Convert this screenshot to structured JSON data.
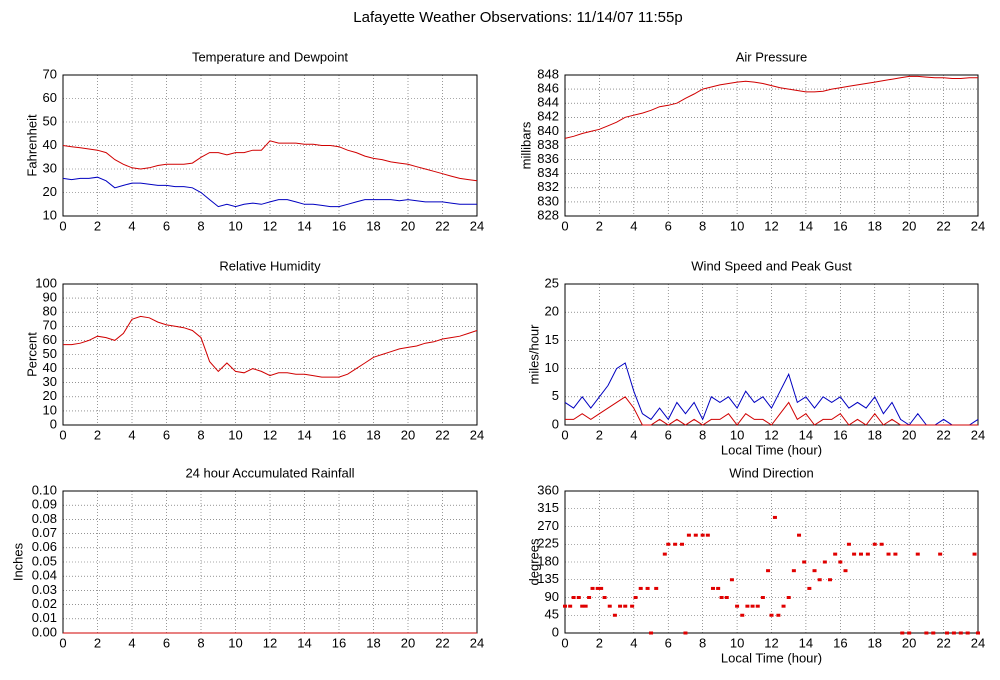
{
  "title": "Lafayette Weather Observations: 11/14/07 11:55p",
  "chart_data": [
    {
      "type": "line",
      "title": "Temperature and Dewpoint",
      "ylabel": "Fahrenheit",
      "grid": true,
      "x": [
        0,
        0.5,
        1,
        1.5,
        2,
        2.5,
        3,
        3.5,
        4,
        4.5,
        5,
        5.5,
        6,
        6.5,
        7,
        7.5,
        8,
        8.5,
        9,
        9.5,
        10,
        10.5,
        11,
        11.5,
        12,
        12.5,
        13,
        13.5,
        14,
        14.5,
        15,
        15.5,
        16,
        16.5,
        17,
        17.5,
        18,
        18.5,
        19,
        19.5,
        20,
        20.5,
        21,
        21.5,
        22,
        22.5,
        23,
        23.5,
        24
      ],
      "xlim": [
        0,
        24
      ],
      "xticks": [
        0,
        2,
        4,
        6,
        8,
        10,
        12,
        14,
        16,
        18,
        20,
        22,
        24
      ],
      "ylim": [
        10,
        70
      ],
      "yticks": [
        10,
        20,
        30,
        40,
        50,
        60,
        70
      ],
      "series": [
        {
          "color": "#d00000",
          "values": [
            40,
            39.5,
            39,
            38.5,
            38,
            37,
            34,
            32,
            30.5,
            30,
            30.5,
            31.5,
            32,
            32,
            32,
            32.5,
            35,
            37,
            37,
            36,
            37,
            37,
            38,
            38,
            42,
            41,
            41,
            41,
            40.5,
            40.5,
            40,
            40,
            39.5,
            38,
            37,
            35.5,
            34.5,
            34,
            33,
            32.5,
            32,
            31,
            30,
            29,
            28,
            27,
            26,
            25.5,
            25
          ]
        },
        {
          "color": "#0000c0",
          "values": [
            26,
            25.5,
            26,
            26,
            26.5,
            25,
            22,
            23,
            24,
            24,
            23.5,
            23,
            23,
            22.5,
            22.5,
            22,
            20,
            17,
            14,
            15,
            14,
            15,
            15.5,
            15,
            16,
            17,
            17,
            16,
            15,
            15,
            14.5,
            14,
            14,
            15,
            16,
            17,
            17,
            17,
            17,
            16.5,
            17,
            16.5,
            16,
            16,
            16,
            15.5,
            15,
            15,
            15
          ]
        }
      ]
    },
    {
      "type": "line",
      "title": "Air Pressure",
      "ylabel": "millibars",
      "grid": true,
      "x": [
        0,
        0.5,
        1,
        1.5,
        2,
        2.5,
        3,
        3.5,
        4,
        4.5,
        5,
        5.5,
        6,
        6.5,
        7,
        7.5,
        8,
        8.5,
        9,
        9.5,
        10,
        10.5,
        11,
        11.5,
        12,
        12.5,
        13,
        13.5,
        14,
        14.5,
        15,
        15.5,
        16,
        16.5,
        17,
        17.5,
        18,
        18.5,
        19,
        19.5,
        20,
        20.5,
        21,
        21.5,
        22,
        22.5,
        23,
        23.5,
        24
      ],
      "xlim": [
        0,
        24
      ],
      "xticks": [
        0,
        2,
        4,
        6,
        8,
        10,
        12,
        14,
        16,
        18,
        20,
        22,
        24
      ],
      "ylim": [
        828,
        848
      ],
      "yticks": [
        828,
        830,
        832,
        834,
        836,
        838,
        840,
        842,
        844,
        846,
        848
      ],
      "series": [
        {
          "color": "#d00000",
          "values": [
            839,
            839.3,
            839.7,
            840,
            840.3,
            840.8,
            841.3,
            842,
            842.3,
            842.6,
            843,
            843.5,
            843.7,
            844,
            844.7,
            845.3,
            846,
            846.3,
            846.6,
            846.8,
            847,
            847.1,
            847,
            846.8,
            846.5,
            846.2,
            846,
            845.8,
            845.6,
            845.6,
            845.7,
            846,
            846.2,
            846.4,
            846.6,
            846.8,
            847,
            847.2,
            847.4,
            847.6,
            847.8,
            847.8,
            847.7,
            847.6,
            847.6,
            847.5,
            847.5,
            847.6,
            847.6
          ]
        }
      ]
    },
    {
      "type": "line",
      "title": "Relative Humidity",
      "ylabel": "Percent",
      "grid": true,
      "x": [
        0,
        0.5,
        1,
        1.5,
        2,
        2.5,
        3,
        3.5,
        4,
        4.5,
        5,
        5.5,
        6,
        6.5,
        7,
        7.5,
        8,
        8.5,
        9,
        9.5,
        10,
        10.5,
        11,
        11.5,
        12,
        12.5,
        13,
        13.5,
        14,
        14.5,
        15,
        15.5,
        16,
        16.5,
        17,
        17.5,
        18,
        18.5,
        19,
        19.5,
        20,
        20.5,
        21,
        21.5,
        22,
        22.5,
        23,
        23.5,
        24
      ],
      "xlim": [
        0,
        24
      ],
      "xticks": [
        0,
        2,
        4,
        6,
        8,
        10,
        12,
        14,
        16,
        18,
        20,
        22,
        24
      ],
      "ylim": [
        0,
        100
      ],
      "yticks": [
        0,
        10,
        20,
        30,
        40,
        50,
        60,
        70,
        80,
        90,
        100
      ],
      "series": [
        {
          "color": "#d00000",
          "values": [
            57,
            57,
            58,
            60,
            63,
            62,
            60,
            65,
            75,
            77,
            76,
            73,
            71,
            70,
            69,
            67,
            62,
            45,
            38,
            44,
            38,
            37,
            40,
            38,
            35,
            37,
            37,
            36,
            36,
            35,
            34,
            34,
            34,
            36,
            40,
            44,
            48,
            50,
            52,
            54,
            55,
            56,
            58,
            59,
            61,
            62,
            63,
            65,
            67
          ]
        }
      ]
    },
    {
      "type": "line",
      "title": "Wind Speed and Peak Gust",
      "ylabel": "miles/hour",
      "xlabel": "Local Time (hour)",
      "grid": true,
      "x": [
        0,
        0.5,
        1,
        1.5,
        2,
        2.5,
        3,
        3.5,
        4,
        4.5,
        5,
        5.5,
        6,
        6.5,
        7,
        7.5,
        8,
        8.5,
        9,
        9.5,
        10,
        10.5,
        11,
        11.5,
        12,
        12.5,
        13,
        13.5,
        14,
        14.5,
        15,
        15.5,
        16,
        16.5,
        17,
        17.5,
        18,
        18.5,
        19,
        19.5,
        20,
        20.5,
        21,
        21.5,
        22,
        22.5,
        23,
        23.5,
        24
      ],
      "xlim": [
        0,
        24
      ],
      "xticks": [
        0,
        2,
        4,
        6,
        8,
        10,
        12,
        14,
        16,
        18,
        20,
        22,
        24
      ],
      "ylim": [
        0,
        25
      ],
      "yticks": [
        0,
        5,
        10,
        15,
        20,
        25
      ],
      "series": [
        {
          "color": "#0000c0",
          "values": [
            4,
            3,
            5,
            3,
            5,
            7,
            10,
            11,
            6,
            2,
            1,
            3,
            1,
            4,
            2,
            4,
            1,
            5,
            4,
            5,
            3,
            6,
            4,
            5,
            3,
            6,
            9,
            4,
            5,
            3,
            5,
            4,
            5,
            3,
            4,
            3,
            5,
            2,
            4,
            1,
            0,
            2,
            0,
            0,
            1,
            0,
            0,
            0,
            1
          ]
        },
        {
          "color": "#d00000",
          "values": [
            1,
            1,
            2,
            1,
            2,
            3,
            4,
            5,
            3,
            0,
            0,
            1,
            0,
            1,
            0,
            1,
            0,
            1,
            1,
            2,
            0,
            2,
            1,
            1,
            0,
            2,
            4,
            1,
            2,
            0,
            1,
            1,
            2,
            0,
            1,
            0,
            2,
            0,
            1,
            0,
            0,
            0,
            0,
            0,
            0,
            0,
            0,
            0,
            0
          ]
        }
      ]
    },
    {
      "type": "line",
      "title": "24 hour Accumulated Rainfall",
      "ylabel": "Inches",
      "grid": true,
      "x": [
        0,
        24
      ],
      "xlim": [
        0,
        24
      ],
      "xticks": [
        0,
        2,
        4,
        6,
        8,
        10,
        12,
        14,
        16,
        18,
        20,
        22,
        24
      ],
      "ylim": [
        0,
        0.1
      ],
      "yticks": [
        {
          "value": 0,
          "label": "0.00"
        },
        {
          "value": 0.01,
          "label": "0.01"
        },
        {
          "value": 0.02,
          "label": "0.02"
        },
        {
          "value": 0.03,
          "label": "0.03"
        },
        {
          "value": 0.04,
          "label": "0.04"
        },
        {
          "value": 0.05,
          "label": "0.05"
        },
        {
          "value": 0.06,
          "label": "0.06"
        },
        {
          "value": 0.07,
          "label": "0.07"
        },
        {
          "value": 0.08,
          "label": "0.08"
        },
        {
          "value": 0.09,
          "label": "0.09"
        },
        {
          "value": 0.1,
          "label": "0.10"
        }
      ],
      "series": [
        {
          "color": "#d00000",
          "values": [
            0,
            0
          ]
        }
      ]
    },
    {
      "type": "scatter",
      "title": "Wind Direction",
      "ylabel": "degrees",
      "xlabel": "Local Time (hour)",
      "grid": true,
      "x": [
        0,
        0.3,
        0.5,
        0.8,
        1,
        1.2,
        1.4,
        1.6,
        1.9,
        2.1,
        2.3,
        2.6,
        2.9,
        3.2,
        3.5,
        3.9,
        4.1,
        4.4,
        4.8,
        5,
        5.3,
        5.8,
        6,
        6.4,
        6.8,
        7,
        7.2,
        7.6,
        8,
        8.3,
        8.6,
        8.9,
        9.1,
        9.4,
        9.7,
        10,
        10.3,
        10.6,
        10.9,
        11.2,
        11.5,
        11.8,
        12,
        12.2,
        12.4,
        12.7,
        13,
        13.3,
        13.6,
        13.9,
        14.2,
        14.5,
        14.8,
        15.1,
        15.4,
        15.7,
        16,
        16.3,
        16.5,
        16.8,
        17.2,
        17.6,
        18,
        18.4,
        18.8,
        19.2,
        19.6,
        20,
        20.5,
        21,
        21.4,
        21.8,
        22.2,
        22.6,
        23,
        23.4,
        23.8,
        24
      ],
      "xlim": [
        0,
        24
      ],
      "xticks": [
        0,
        2,
        4,
        6,
        8,
        10,
        12,
        14,
        16,
        18,
        20,
        22,
        24
      ],
      "ylim": [
        0,
        360
      ],
      "yticks": [
        0,
        45,
        90,
        135,
        180,
        225,
        270,
        315,
        360
      ],
      "series": [
        {
          "color": "#e00000",
          "values": [
            68,
            68,
            90,
            90,
            68,
            68,
            90,
            113,
            113,
            113,
            90,
            68,
            45,
            68,
            68,
            68,
            90,
            113,
            113,
            0,
            113,
            200,
            225,
            225,
            225,
            0,
            248,
            248,
            248,
            248,
            113,
            113,
            90,
            90,
            135,
            68,
            45,
            68,
            68,
            68,
            90,
            158,
            45,
            293,
            45,
            68,
            90,
            158,
            248,
            180,
            113,
            158,
            135,
            180,
            135,
            200,
            180,
            158,
            225,
            200,
            200,
            200,
            225,
            225,
            200,
            200,
            0,
            0,
            200,
            0,
            0,
            200,
            0,
            0,
            0,
            0,
            200,
            0
          ]
        }
      ]
    }
  ]
}
